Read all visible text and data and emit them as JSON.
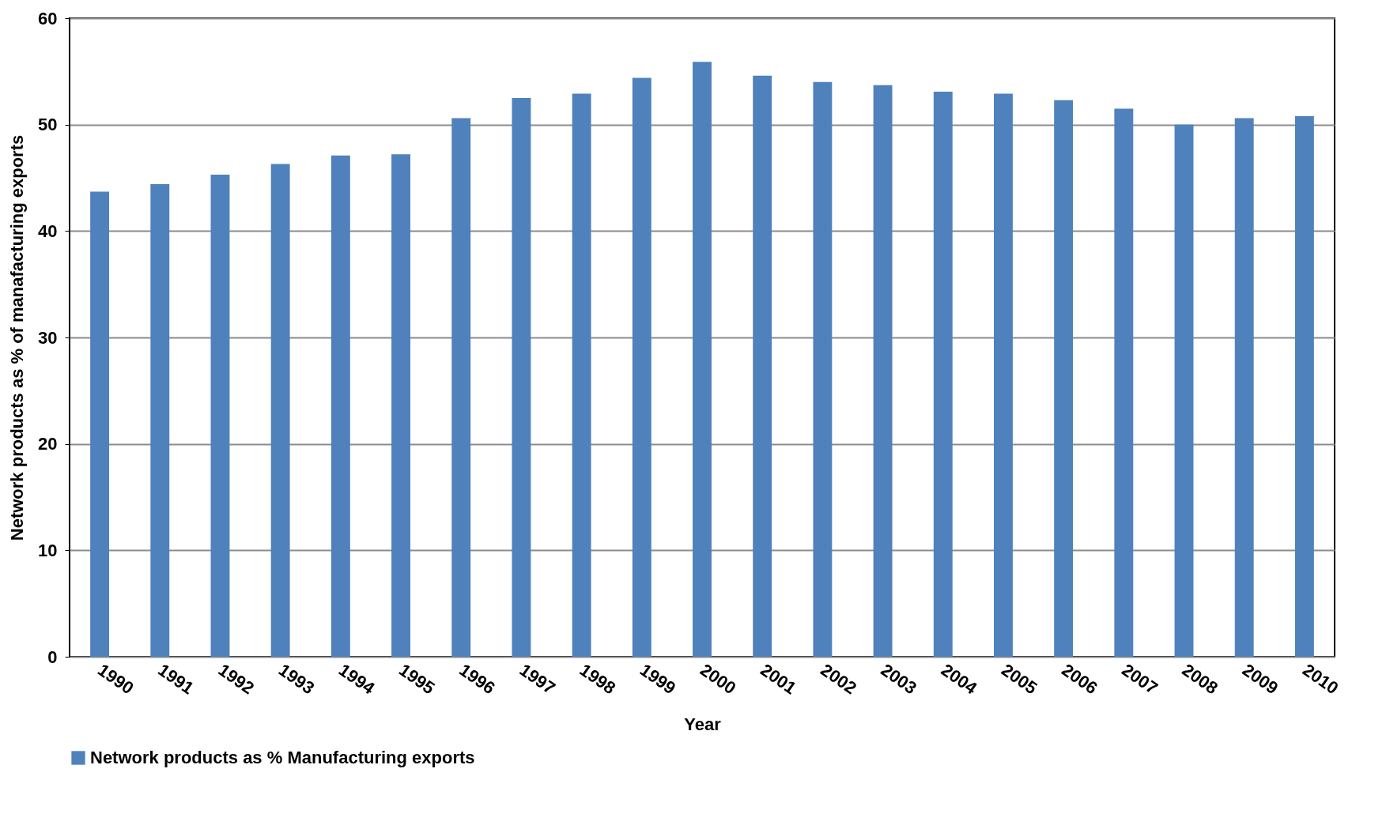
{
  "chart_data": {
    "type": "bar",
    "xlabel": "Year",
    "ylabel": "Network products as % of manafacturing exports",
    "categories": [
      "1990",
      "1991",
      "1992",
      "1993",
      "1994",
      "1995",
      "1996",
      "1997",
      "1998",
      "1999",
      "2000",
      "2001",
      "2002",
      "2003",
      "2004",
      "2005",
      "2006",
      "2007",
      "2008",
      "2009",
      "2010"
    ],
    "series": [
      {
        "name": "Network products as % Manufacturing exports",
        "color": "#4f81bd",
        "values": [
          43.7,
          44.4,
          45.3,
          46.3,
          47.1,
          47.2,
          50.6,
          52.5,
          52.9,
          54.4,
          55.9,
          54.6,
          54.0,
          53.7,
          53.1,
          52.9,
          52.3,
          51.5,
          50.0,
          50.6,
          50.8
        ]
      }
    ],
    "ylim": [
      0,
      60
    ],
    "yticks": [
      0,
      10,
      20,
      30,
      40,
      50,
      60
    ],
    "grid": "y",
    "legend": "bottom"
  }
}
